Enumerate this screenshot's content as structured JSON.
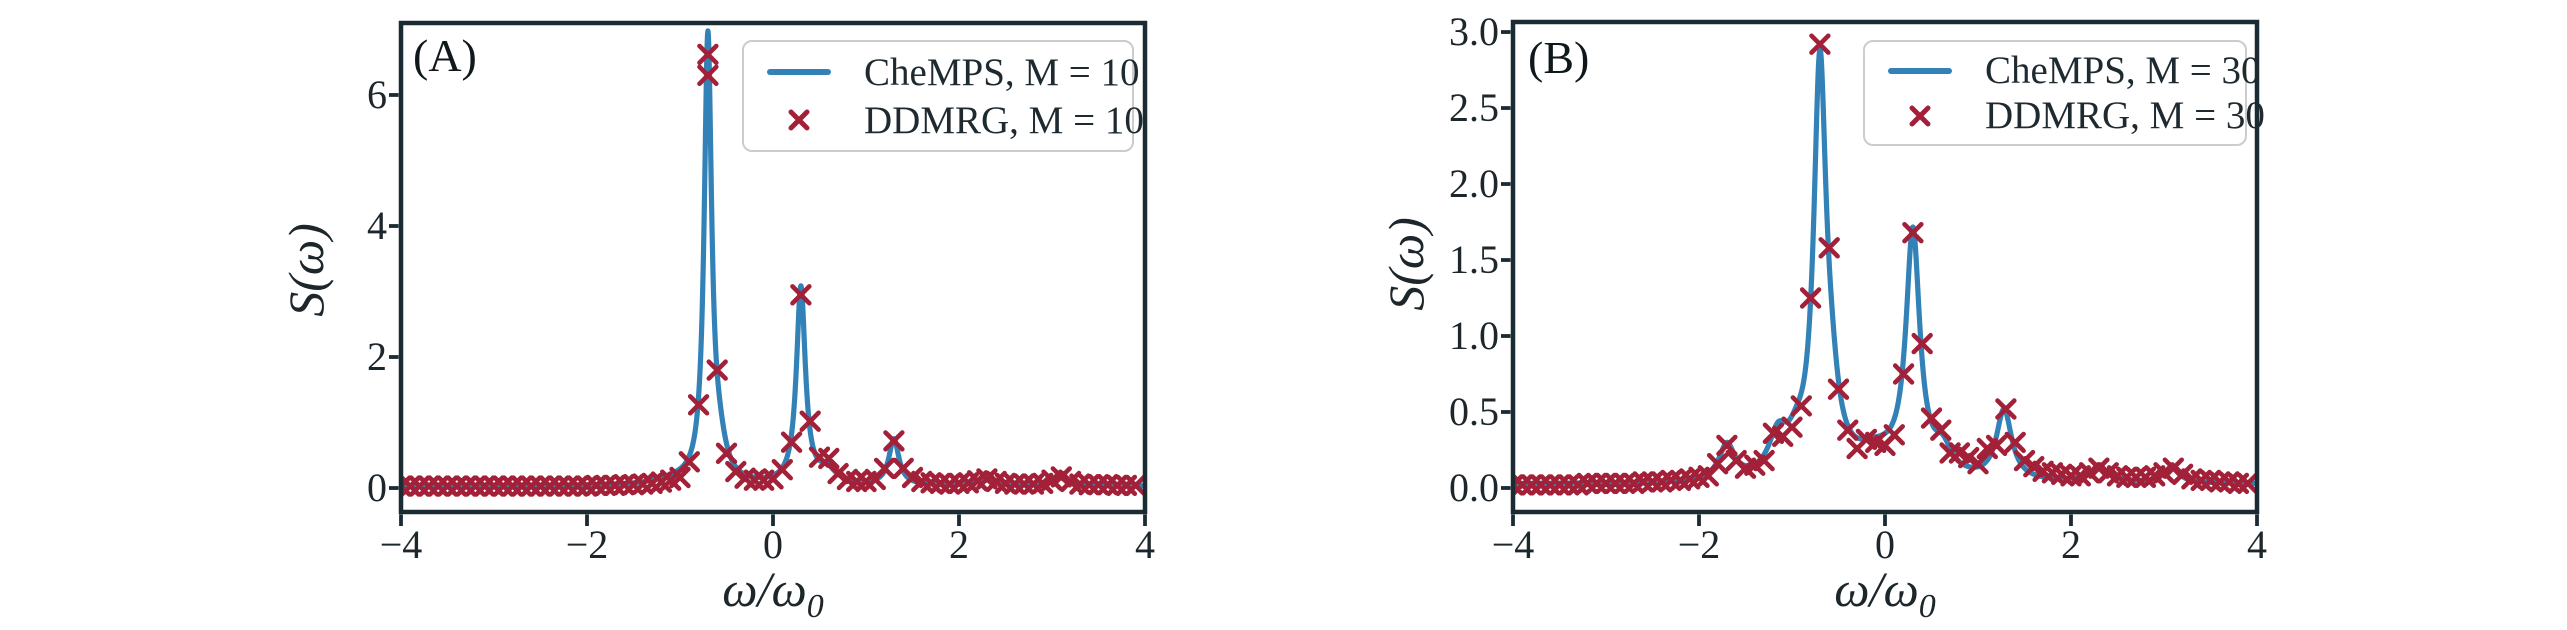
{
  "style": {
    "background": "#ffffff",
    "line_color": "#3382b7",
    "marker_color": "#a32138",
    "axis_color": "#1b2b33",
    "text_color": "#1c262b",
    "legend_border_color": "#cccccc"
  },
  "chart_data": [
    {
      "type": "line+scatter",
      "panel_label": "(A)",
      "ylabel": "S(ω)",
      "xlabel": {
        "text": "ω/ω",
        "sub": "0"
      },
      "xlim": [
        -4,
        4
      ],
      "ylim": [
        -0.366,
        7.099
      ],
      "grid": false,
      "legend_position": "upper right",
      "x_ticks": {
        "values": [
          -4,
          -2,
          0,
          2,
          4
        ],
        "labels": [
          "−4",
          "−2",
          "0",
          "2",
          "4"
        ]
      },
      "y_ticks": {
        "values": [
          0,
          2,
          4,
          6
        ],
        "labels": [
          "0",
          "2",
          "4",
          "6"
        ]
      },
      "axes_box": {
        "l": 401,
        "t": 23,
        "r": 1145,
        "b": 512
      },
      "series": [
        {
          "name": "CheMPS, M = 10",
          "type": "line",
          "color": "#3382b7",
          "curve": {
            "baseline": 0.03,
            "peaks": [
              {
                "center": -0.7,
                "height": 6.75,
                "hwhm": 0.048
              },
              {
                "center": -0.58,
                "height": 0.45,
                "hwhm": 0.09
              },
              {
                "center": -1.05,
                "height": 0.07,
                "hwhm": 0.25
              },
              {
                "center": 0.3,
                "height": 3.0,
                "hwhm": 0.058
              },
              {
                "center": 0.58,
                "height": 0.2,
                "hwhm": 0.12
              },
              {
                "center": 1.3,
                "height": 0.7,
                "hwhm": 0.065
              },
              {
                "center": 2.3,
                "height": 0.08,
                "hwhm": 0.15
              },
              {
                "center": 3.08,
                "height": 0.12,
                "hwhm": 0.1
              }
            ]
          }
        },
        {
          "name": "DDMRG, M = 10",
          "type": "scatter",
          "marker": "x",
          "color": "#a32138",
          "x_start": -4.0,
          "x_step": 0.1,
          "y": [
            0.03,
            0.03,
            0.03,
            0.03,
            0.03,
            0.03,
            0.03,
            0.03,
            0.03,
            0.03,
            0.03,
            0.03,
            0.03,
            0.03,
            0.03,
            0.03,
            0.03,
            0.03,
            0.03,
            0.03,
            0.03,
            0.04,
            0.04,
            0.04,
            0.05,
            0.05,
            0.06,
            0.07,
            0.09,
            0.12,
            0.16,
            0.4,
            1.27,
            6.62,
            1.8,
            0.53,
            0.25,
            0.15,
            0.12,
            0.12,
            0.14,
            0.28,
            0.7,
            2.95,
            1.02,
            0.47,
            0.45,
            0.22,
            0.13,
            0.1,
            0.1,
            0.13,
            0.3,
            0.72,
            0.3,
            0.16,
            0.1,
            0.08,
            0.07,
            0.06,
            0.07,
            0.08,
            0.11,
            0.14,
            0.1,
            0.07,
            0.06,
            0.06,
            0.06,
            0.07,
            0.12,
            0.17,
            0.1,
            0.06,
            0.05,
            0.05,
            0.05,
            0.04,
            0.04,
            0.04
          ],
          "extra_points": [
            [
              -0.7,
              6.3
            ]
          ]
        }
      ]
    },
    {
      "type": "line+scatter",
      "panel_label": "(B)",
      "ylabel": "S(ω)",
      "xlabel": {
        "text": "ω/ω",
        "sub": "0"
      },
      "xlim": [
        -4,
        4
      ],
      "ylim": [
        -0.158,
        3.066
      ],
      "grid": false,
      "legend_position": "upper right",
      "x_ticks": {
        "values": [
          -4,
          -2,
          0,
          2,
          4
        ],
        "labels": [
          "−4",
          "−2",
          "0",
          "2",
          "4"
        ]
      },
      "y_ticks": {
        "values": [
          0,
          0.5,
          1,
          1.5,
          2,
          2.5,
          3
        ],
        "labels": [
          "0.0",
          "0.5",
          "1.0",
          "1.5",
          "2.0",
          "2.5",
          "3.0"
        ]
      },
      "axes_box": {
        "l": 1513,
        "t": 22,
        "r": 2257,
        "b": 512
      },
      "series": [
        {
          "name": "CheMPS, M = 30",
          "type": "line",
          "color": "#3382b7",
          "curve": {
            "baseline": 0.025,
            "peaks": [
              {
                "center": -0.7,
                "height": 2.62,
                "hwhm": 0.08
              },
              {
                "center": -0.58,
                "height": 0.35,
                "hwhm": 0.1
              },
              {
                "center": -0.95,
                "height": 0.15,
                "hwhm": 0.12
              },
              {
                "center": -1.15,
                "height": 0.25,
                "hwhm": 0.12
              },
              {
                "center": -1.7,
                "height": 0.23,
                "hwhm": 0.1
              },
              {
                "center": -0.1,
                "height": 0.16,
                "hwhm": 0.32
              },
              {
                "center": 0.3,
                "height": 1.58,
                "hwhm": 0.09
              },
              {
                "center": 0.62,
                "height": 0.16,
                "hwhm": 0.12
              },
              {
                "center": 1.28,
                "height": 0.46,
                "hwhm": 0.1
              },
              {
                "center": 2.3,
                "height": 0.09,
                "hwhm": 0.15
              },
              {
                "center": 3.08,
                "height": 0.1,
                "hwhm": 0.1
              }
            ]
          }
        },
        {
          "name": "DDMRG, M = 30",
          "type": "scatter",
          "marker": "x",
          "color": "#a32138",
          "x_start": -4.0,
          "x_step": 0.1,
          "y": [
            0.02,
            0.02,
            0.02,
            0.02,
            0.02,
            0.02,
            0.02,
            0.02,
            0.03,
            0.03,
            0.03,
            0.03,
            0.03,
            0.03,
            0.04,
            0.04,
            0.04,
            0.05,
            0.05,
            0.06,
            0.07,
            0.08,
            0.16,
            0.28,
            0.18,
            0.13,
            0.15,
            0.18,
            0.36,
            0.34,
            0.4,
            0.54,
            1.25,
            2.92,
            1.58,
            0.65,
            0.38,
            0.26,
            0.32,
            0.3,
            0.28,
            0.35,
            0.75,
            1.68,
            0.95,
            0.46,
            0.38,
            0.23,
            0.23,
            0.2,
            0.16,
            0.26,
            0.28,
            0.52,
            0.3,
            0.18,
            0.14,
            0.11,
            0.1,
            0.09,
            0.08,
            0.08,
            0.1,
            0.13,
            0.1,
            0.08,
            0.07,
            0.07,
            0.07,
            0.08,
            0.1,
            0.13,
            0.09,
            0.06,
            0.05,
            0.05,
            0.04,
            0.04,
            0.03,
            0.03
          ],
          "extra_points": []
        }
      ]
    }
  ]
}
